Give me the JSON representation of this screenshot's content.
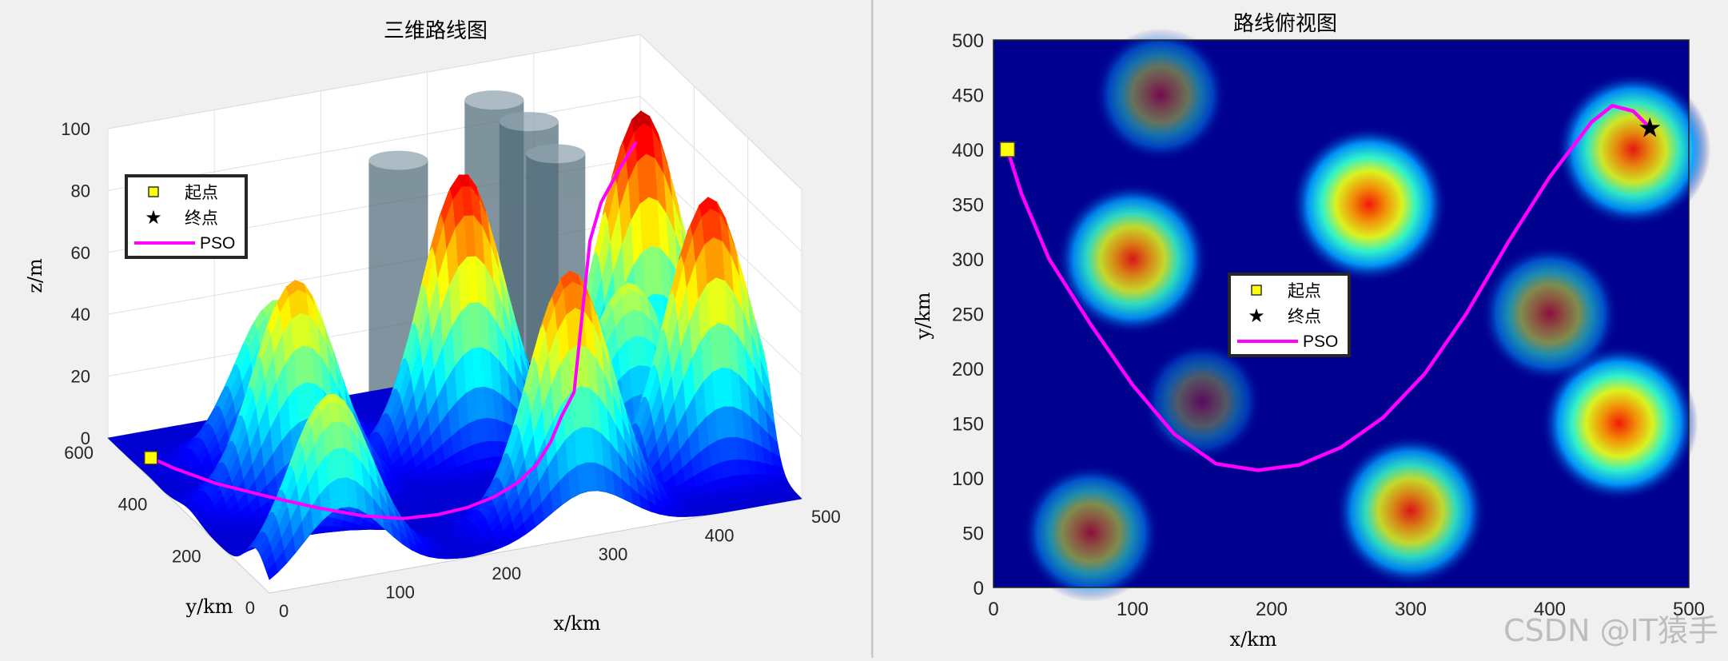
{
  "chart_data": [
    {
      "type": "surface3d",
      "title": "三维路线图",
      "xlabel": "x/km",
      "ylabel": "y/km",
      "zlabel": "z/m",
      "xlim": [
        0,
        500
      ],
      "ylim": [
        0,
        600
      ],
      "zlim": [
        0,
        100
      ],
      "x_ticks": [
        "0",
        "100",
        "200",
        "300",
        "400",
        "500"
      ],
      "y_ticks": [
        "0",
        "200",
        "400",
        "600"
      ],
      "z_ticks": [
        "0",
        "20",
        "40",
        "60",
        "80",
        "100"
      ],
      "colormap": "jet",
      "grid": true,
      "legend": {
        "position": "top-left",
        "entries": [
          "起点",
          "终点",
          "PSO"
        ]
      },
      "peaks": [
        {
          "x": 70,
          "y": 50,
          "z": 56
        },
        {
          "x": 300,
          "y": 70,
          "z": 80
        },
        {
          "x": 100,
          "y": 300,
          "z": 70
        },
        {
          "x": 270,
          "y": 350,
          "z": 90
        },
        {
          "x": 450,
          "y": 150,
          "z": 88
        },
        {
          "x": 450,
          "y": 400,
          "z": 95
        },
        {
          "x": 120,
          "y": 450,
          "z": 50
        },
        {
          "x": 400,
          "y": 250,
          "z": 55
        }
      ],
      "cylinders": [
        {
          "x": 240,
          "y": 470,
          "height": 86
        },
        {
          "x": 330,
          "y": 470,
          "height": 100
        },
        {
          "x": 350,
          "y": 420,
          "height": 96
        },
        {
          "x": 360,
          "y": 360,
          "height": 90
        }
      ]
    },
    {
      "type": "heatmap",
      "title": "路线俯视图",
      "xlabel": "x/km",
      "ylabel": "y/km",
      "xlim": [
        0,
        500
      ],
      "ylim": [
        0,
        500
      ],
      "x_ticks": [
        "0",
        "100",
        "200",
        "300",
        "400",
        "500"
      ],
      "y_ticks": [
        "0",
        "50",
        "100",
        "150",
        "200",
        "250",
        "300",
        "350",
        "400",
        "450",
        "500"
      ],
      "colormap": "jet",
      "legend": {
        "position": "center",
        "entries": [
          "起点",
          "终点",
          "PSO"
        ]
      },
      "peaks": [
        {
          "x": 70,
          "y": 50,
          "level": 0.55
        },
        {
          "x": 300,
          "y": 70,
          "level": 0.85
        },
        {
          "x": 100,
          "y": 300,
          "level": 0.85
        },
        {
          "x": 270,
          "y": 350,
          "level": 0.95
        },
        {
          "x": 450,
          "y": 150,
          "level": 0.95
        },
        {
          "x": 460,
          "y": 400,
          "level": 0.9
        },
        {
          "x": 120,
          "y": 450,
          "level": 0.45
        },
        {
          "x": 400,
          "y": 250,
          "level": 0.55
        },
        {
          "x": 150,
          "y": 170,
          "level": 0.15
        }
      ],
      "series": [
        {
          "name": "PSO",
          "color": "#ff00ff",
          "points": [
            [
              10,
              400
            ],
            [
              20,
              360
            ],
            [
              40,
              300
            ],
            [
              70,
              240
            ],
            [
              100,
              185
            ],
            [
              130,
              140
            ],
            [
              160,
              113
            ],
            [
              190,
              107
            ],
            [
              220,
              112
            ],
            [
              250,
              128
            ],
            [
              280,
              155
            ],
            [
              310,
              195
            ],
            [
              340,
              250
            ],
            [
              370,
              315
            ],
            [
              400,
              375
            ],
            [
              430,
              425
            ],
            [
              445,
              440
            ],
            [
              460,
              435
            ],
            [
              472,
              420
            ]
          ]
        }
      ],
      "start": {
        "x": 10,
        "y": 400,
        "color": "#ffff00"
      },
      "end": {
        "x": 472,
        "y": 420
      }
    }
  ],
  "watermark": "CSDN @IT猿手"
}
